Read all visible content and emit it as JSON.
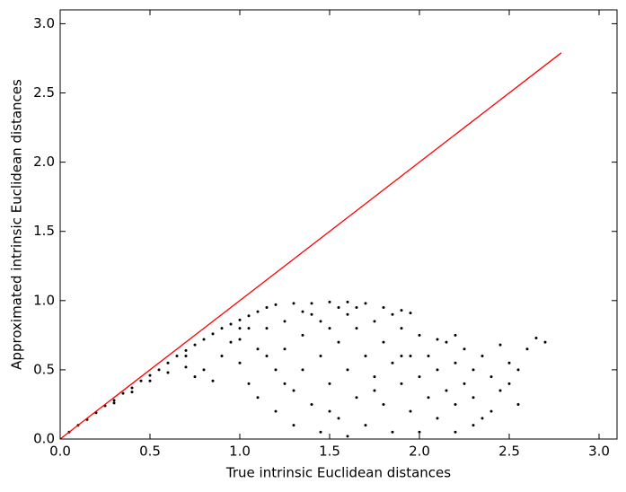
{
  "chart_data": {
    "type": "scatter",
    "xlabel": "True intrinsic Euclidean distances",
    "ylabel": "Approximated intrinsic Euclidean distances",
    "xlim": [
      0,
      3.1
    ],
    "ylim": [
      0,
      3.1
    ],
    "xticks": [
      {
        "value": 0,
        "label": "0.0"
      },
      0.5,
      {
        "value": 1,
        "label": "1.0"
      },
      1.5,
      {
        "value": 2,
        "label": "2.0"
      },
      2.5,
      {
        "value": 3,
        "label": "3.0"
      }
    ],
    "yticks": [
      {
        "value": 0,
        "label": "0.0"
      },
      0.5,
      {
        "value": 1,
        "label": "1.0"
      },
      1.5,
      {
        "value": 2,
        "label": "2.0"
      },
      2.5,
      {
        "value": 3,
        "label": "3.0"
      }
    ],
    "grid": false,
    "color": "#000000",
    "x": [
      0.05,
      0.1,
      0.15,
      0.2,
      0.25,
      0.3,
      0.35,
      0.4,
      0.45,
      0.5,
      0.55,
      0.6,
      0.65,
      0.7,
      0.75,
      0.8,
      0.85,
      0.9,
      0.95,
      1.0,
      1.05,
      1.1,
      1.15,
      1.2,
      1.3,
      1.4,
      1.5,
      1.6,
      1.7,
      1.8,
      1.9,
      1.95,
      0.3,
      0.4,
      0.5,
      0.6,
      0.7,
      0.75,
      0.8,
      0.85,
      0.9,
      1.0,
      1.0,
      1.05,
      1.1,
      1.1,
      1.15,
      1.2,
      1.2,
      1.25,
      1.25,
      1.3,
      1.3,
      1.35,
      1.35,
      1.4,
      1.4,
      1.45,
      1.45,
      1.5,
      1.5,
      1.55,
      1.55,
      1.6,
      1.6,
      1.65,
      1.65,
      1.7,
      1.7,
      1.75,
      1.75,
      1.8,
      1.8,
      1.85,
      1.85,
      1.9,
      1.9,
      1.95,
      1.95,
      2.0,
      2.0,
      2.05,
      2.05,
      2.1,
      2.1,
      2.15,
      2.15,
      2.2,
      2.2,
      2.25,
      2.25,
      2.3,
      2.3,
      2.35,
      2.4,
      2.45,
      2.5,
      2.55,
      2.6,
      2.65,
      2.7,
      2.45,
      2.4,
      2.3,
      2.2,
      2.0,
      1.55,
      1.0,
      0.95,
      0.7,
      1.05,
      1.15,
      1.35,
      1.45,
      1.65,
      1.85,
      1.9,
      1.75,
      1.5,
      1.25,
      1.6,
      2.35,
      2.5,
      2.55,
      2.1,
      2.2
    ],
    "y": [
      0.05,
      0.1,
      0.14,
      0.19,
      0.24,
      0.28,
      0.33,
      0.37,
      0.42,
      0.46,
      0.5,
      0.55,
      0.6,
      0.64,
      0.68,
      0.72,
      0.76,
      0.8,
      0.83,
      0.86,
      0.89,
      0.92,
      0.95,
      0.97,
      0.98,
      0.98,
      0.99,
      0.99,
      0.98,
      0.95,
      0.93,
      0.91,
      0.26,
      0.34,
      0.42,
      0.48,
      0.52,
      0.45,
      0.5,
      0.42,
      0.6,
      0.55,
      0.72,
      0.4,
      0.65,
      0.3,
      0.8,
      0.5,
      0.2,
      0.85,
      0.65,
      0.35,
      0.1,
      0.75,
      0.5,
      0.9,
      0.25,
      0.6,
      0.05,
      0.8,
      0.4,
      0.7,
      0.15,
      0.9,
      0.5,
      0.3,
      0.8,
      0.6,
      0.1,
      0.85,
      0.45,
      0.7,
      0.25,
      0.55,
      0.05,
      0.8,
      0.4,
      0.6,
      0.2,
      0.75,
      0.45,
      0.3,
      0.6,
      0.5,
      0.15,
      0.7,
      0.35,
      0.55,
      0.25,
      0.65,
      0.4,
      0.3,
      0.5,
      0.6,
      0.45,
      0.35,
      0.55,
      0.25,
      0.65,
      0.73,
      0.7,
      0.68,
      0.2,
      0.1,
      0.05,
      0.05,
      0.95,
      0.8,
      0.7,
      0.6,
      0.8,
      0.6,
      0.92,
      0.85,
      0.95,
      0.9,
      0.6,
      0.35,
      0.2,
      0.4,
      0.02,
      0.15,
      0.4,
      0.5,
      0.72,
      0.75
    ],
    "line": {
      "color": "#ff0000",
      "x": [
        0,
        2.79
      ],
      "y": [
        0,
        2.79
      ]
    }
  }
}
